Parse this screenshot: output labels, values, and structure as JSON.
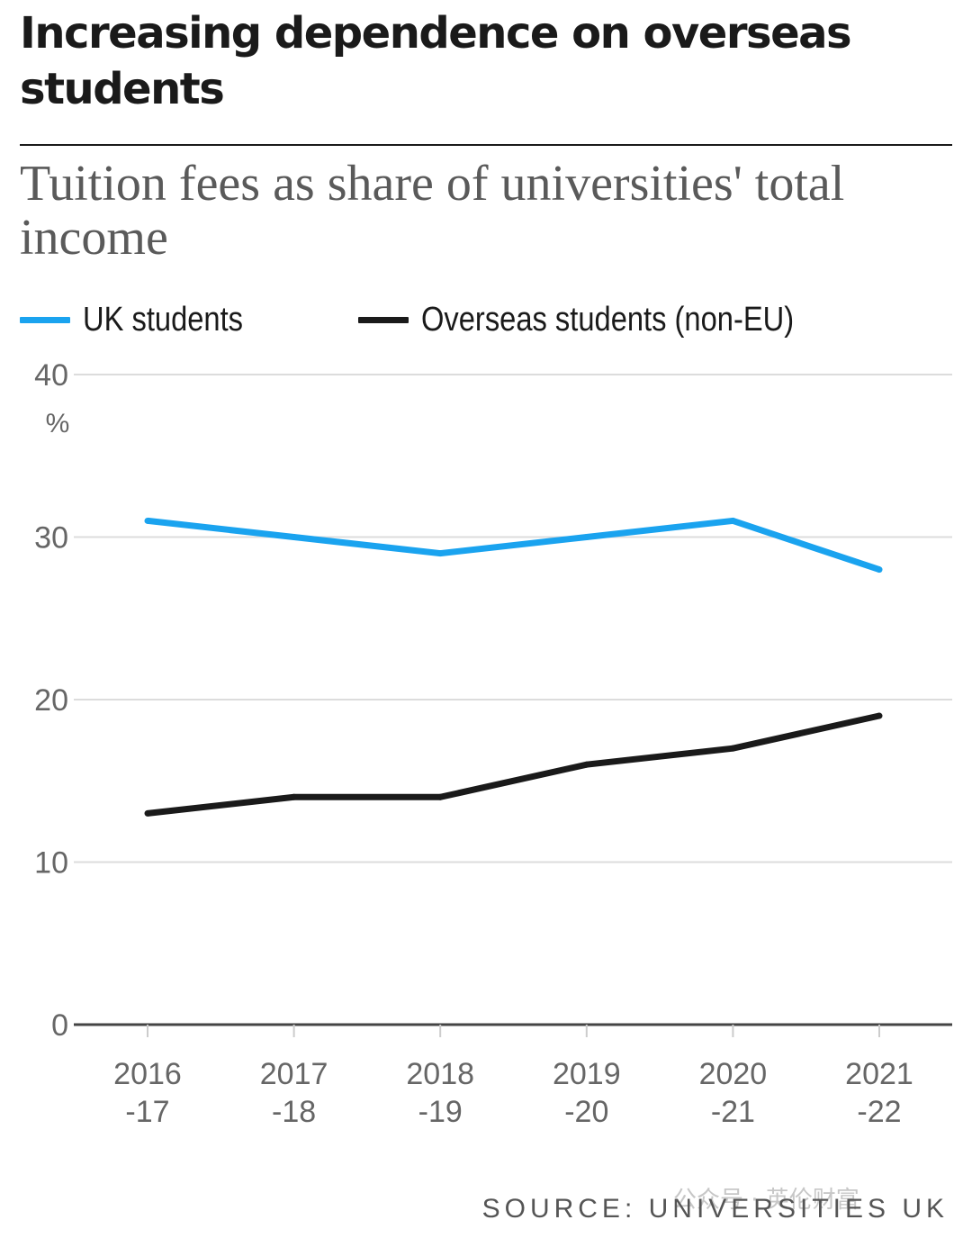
{
  "title": "Increasing dependence on overseas students",
  "subtitle": "Tuition fees as share of universities' total income",
  "source": "SOURCE: UNIVERSITIES UK",
  "watermark": "公众号 · 英伦财富",
  "chart_data": {
    "type": "line",
    "title": "Increasing dependence on overseas students",
    "subtitle": "Tuition fees as share of universities' total income",
    "categories": [
      [
        "2016",
        "-17"
      ],
      [
        "2017",
        "-18"
      ],
      [
        "2018",
        "-19"
      ],
      [
        "2019",
        "-20"
      ],
      [
        "2020",
        "-21"
      ],
      [
        "2021",
        "-22"
      ]
    ],
    "y_unit": "%",
    "ylim": [
      0,
      40
    ],
    "yticks": [
      "0",
      "10",
      "20",
      "30",
      "40"
    ],
    "grid": true,
    "legend_position": "top-left",
    "series": [
      {
        "name": "UK students",
        "color": "#1aa3ef",
        "values": [
          31,
          30,
          29,
          30,
          31,
          28
        ]
      },
      {
        "name": "Overseas students (non-EU)",
        "color": "#1a1a1a",
        "values": [
          13,
          14,
          14,
          16,
          17,
          19
        ]
      }
    ]
  }
}
